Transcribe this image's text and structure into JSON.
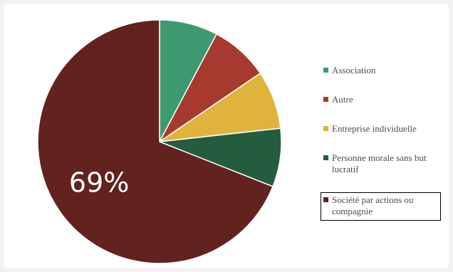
{
  "chart_data": {
    "type": "pie",
    "slices": [
      {
        "name": "Association",
        "value": 7.75,
        "color": "#3d9970"
      },
      {
        "name": "Autre",
        "value": 7.75,
        "color": "#a63a2f"
      },
      {
        "name": "Entreprise individuelle",
        "value": 7.75,
        "color": "#e0b43c"
      },
      {
        "name": "Personne morale sans but lucratif",
        "value": 7.75,
        "color": "#235c3e"
      },
      {
        "name": "Société par actions ou compagnie",
        "value": 69,
        "color": "#62221d"
      }
    ],
    "data_labels": [
      {
        "slice": "Société par actions ou compagnie",
        "text": "69%"
      }
    ],
    "legend_position": "right",
    "selected_legend_item": "Société par actions ou compagnie"
  }
}
